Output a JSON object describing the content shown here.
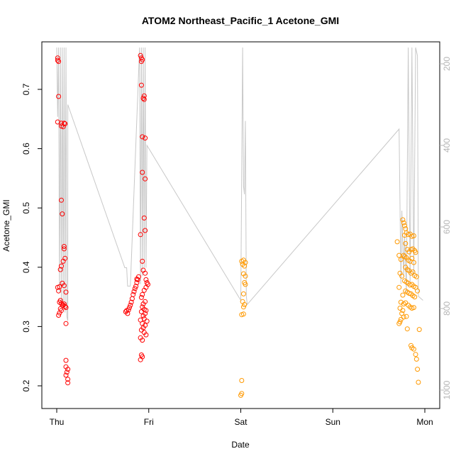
{
  "chart_data": {
    "type": "scatter",
    "title": "ATOM2 Northeast_Pacific_1 Acetone_GMI",
    "xlabel": "Date",
    "ylabel": "Acetone_GMI",
    "x_ticks": [
      "Thu",
      "Fri",
      "Sat",
      "Sun",
      "Mon"
    ],
    "y_ticks": [
      "0.2",
      "0.3",
      "0.4",
      "0.5",
      "0.6",
      "0.7"
    ],
    "y2_ticks": [
      "200",
      "400",
      "600",
      "800",
      "1000"
    ],
    "xlim": [
      0,
      4
    ],
    "ylim": [
      0.18,
      0.78
    ],
    "y2lim": [
      1030,
      160
    ],
    "y2_reversed": true,
    "grid": false,
    "colors": {
      "early_points": "#ff0000",
      "late_points": "#ff9900",
      "pressure_line": "#c8c8c8",
      "axis": "#000000",
      "y2_axis": "#b5b5b5"
    },
    "series": [
      {
        "color": "#ff0000",
        "points": [
          [
            0.01,
            0.753
          ],
          [
            0.01,
            0.749
          ],
          [
            0.02,
            0.747
          ],
          [
            0.01,
            0.645
          ],
          [
            0.02,
            0.688
          ],
          [
            0.05,
            0.643
          ],
          [
            0.05,
            0.638
          ],
          [
            0.07,
            0.637
          ],
          [
            0.08,
            0.643
          ],
          [
            0.09,
            0.642
          ],
          [
            0.05,
            0.513
          ],
          [
            0.06,
            0.49
          ],
          [
            0.08,
            0.435
          ],
          [
            0.08,
            0.431
          ],
          [
            0.09,
            0.415
          ],
          [
            0.07,
            0.41
          ],
          [
            0.05,
            0.402
          ],
          [
            0.04,
            0.396
          ],
          [
            0.06,
            0.373
          ],
          [
            0.08,
            0.369
          ],
          [
            0.01,
            0.366
          ],
          [
            0.03,
            0.367
          ],
          [
            0.02,
            0.36
          ],
          [
            0.1,
            0.358
          ],
          [
            0.04,
            0.344
          ],
          [
            0.03,
            0.341
          ],
          [
            0.05,
            0.339
          ],
          [
            0.06,
            0.336
          ],
          [
            0.07,
            0.336
          ],
          [
            0.08,
            0.338
          ],
          [
            0.09,
            0.334
          ],
          [
            0.1,
            0.332
          ],
          [
            0.04,
            0.33
          ],
          [
            0.05,
            0.327
          ],
          [
            0.03,
            0.323
          ],
          [
            0.02,
            0.319
          ],
          [
            0.1,
            0.305
          ],
          [
            0.1,
            0.243
          ],
          [
            0.1,
            0.232
          ],
          [
            0.12,
            0.228
          ],
          [
            0.11,
            0.223
          ],
          [
            0.1,
            0.218
          ],
          [
            0.12,
            0.211
          ],
          [
            0.12,
            0.205
          ],
          [
            0.75,
            0.325
          ],
          [
            0.76,
            0.327
          ],
          [
            0.77,
            0.322
          ],
          [
            0.78,
            0.328
          ],
          [
            0.79,
            0.332
          ],
          [
            0.8,
            0.336
          ],
          [
            0.81,
            0.341
          ],
          [
            0.82,
            0.347
          ],
          [
            0.83,
            0.354
          ],
          [
            0.84,
            0.359
          ],
          [
            0.85,
            0.364
          ],
          [
            0.86,
            0.368
          ],
          [
            0.87,
            0.374
          ],
          [
            0.88,
            0.379
          ],
          [
            0.89,
            0.384
          ],
          [
            0.87,
            0.38
          ],
          [
            0.91,
            0.757
          ],
          [
            0.92,
            0.753
          ],
          [
            0.93,
            0.75
          ],
          [
            0.92,
            0.747
          ],
          [
            0.92,
            0.707
          ],
          [
            0.94,
            0.685
          ],
          [
            0.95,
            0.683
          ],
          [
            0.95,
            0.689
          ],
          [
            0.93,
            0.62
          ],
          [
            0.96,
            0.618
          ],
          [
            0.93,
            0.56
          ],
          [
            0.96,
            0.549
          ],
          [
            0.95,
            0.483
          ],
          [
            0.96,
            0.462
          ],
          [
            0.91,
            0.455
          ],
          [
            0.93,
            0.41
          ],
          [
            0.94,
            0.395
          ],
          [
            0.96,
            0.39
          ],
          [
            0.97,
            0.379
          ],
          [
            0.98,
            0.374
          ],
          [
            0.99,
            0.371
          ],
          [
            0.97,
            0.366
          ],
          [
            0.95,
            0.361
          ],
          [
            0.93,
            0.354
          ],
          [
            0.92,
            0.349
          ],
          [
            0.96,
            0.342
          ],
          [
            0.94,
            0.338
          ],
          [
            0.93,
            0.333
          ],
          [
            0.95,
            0.329
          ],
          [
            0.97,
            0.327
          ],
          [
            0.92,
            0.325
          ],
          [
            0.96,
            0.322
          ],
          [
            0.94,
            0.318
          ],
          [
            0.95,
            0.313
          ],
          [
            0.91,
            0.311
          ],
          [
            0.98,
            0.309
          ],
          [
            0.93,
            0.305
          ],
          [
            0.96,
            0.302
          ],
          [
            0.94,
            0.298
          ],
          [
            0.92,
            0.294
          ],
          [
            0.95,
            0.29
          ],
          [
            0.97,
            0.286
          ],
          [
            0.91,
            0.281
          ],
          [
            0.93,
            0.277
          ],
          [
            0.92,
            0.252
          ],
          [
            0.93,
            0.249
          ],
          [
            0.91,
            0.244
          ]
        ]
      },
      {
        "color": "#ff9900",
        "points": [
          [
            2.01,
            0.41
          ],
          [
            2.03,
            0.412
          ],
          [
            2.05,
            0.408
          ],
          [
            2.02,
            0.405
          ],
          [
            2.04,
            0.402
          ],
          [
            2.03,
            0.389
          ],
          [
            2.05,
            0.385
          ],
          [
            2.04,
            0.374
          ],
          [
            2.05,
            0.371
          ],
          [
            2.03,
            0.355
          ],
          [
            2.02,
            0.342
          ],
          [
            2.04,
            0.337
          ],
          [
            2.03,
            0.333
          ],
          [
            2.01,
            0.32
          ],
          [
            2.03,
            0.321
          ],
          [
            2.01,
            0.209
          ],
          [
            2.01,
            0.187
          ],
          [
            2.0,
            0.184
          ],
          [
            3.7,
            0.443
          ],
          [
            3.72,
            0.42
          ],
          [
            3.74,
            0.413
          ],
          [
            3.73,
            0.39
          ],
          [
            3.75,
            0.385
          ],
          [
            3.72,
            0.366
          ],
          [
            3.76,
            0.353
          ],
          [
            3.74,
            0.341
          ],
          [
            3.77,
            0.338
          ],
          [
            3.73,
            0.331
          ],
          [
            3.76,
            0.327
          ],
          [
            3.75,
            0.322
          ],
          [
            3.74,
            0.312
          ],
          [
            3.73,
            0.308
          ],
          [
            3.72,
            0.305
          ],
          [
            3.77,
            0.316
          ],
          [
            3.8,
            0.317
          ],
          [
            3.81,
            0.296
          ],
          [
            3.85,
            0.268
          ],
          [
            3.86,
            0.264
          ],
          [
            3.88,
            0.262
          ],
          [
            3.9,
            0.253
          ],
          [
            3.91,
            0.245
          ],
          [
            3.92,
            0.228
          ],
          [
            3.93,
            0.206
          ],
          [
            3.94,
            0.295
          ],
          [
            3.76,
            0.48
          ],
          [
            3.77,
            0.475
          ],
          [
            3.78,
            0.47
          ],
          [
            3.79,
            0.465
          ],
          [
            3.8,
            0.458
          ],
          [
            3.78,
            0.454
          ],
          [
            3.82,
            0.455
          ],
          [
            3.84,
            0.456
          ],
          [
            3.86,
            0.452
          ],
          [
            3.88,
            0.453
          ],
          [
            3.79,
            0.44
          ],
          [
            3.81,
            0.43
          ],
          [
            3.83,
            0.426
          ],
          [
            3.85,
            0.43
          ],
          [
            3.87,
            0.431
          ],
          [
            3.89,
            0.428
          ],
          [
            3.9,
            0.425
          ],
          [
            3.77,
            0.42
          ],
          [
            3.78,
            0.418
          ],
          [
            3.8,
            0.416
          ],
          [
            3.82,
            0.412
          ],
          [
            3.84,
            0.41
          ],
          [
            3.86,
            0.415
          ],
          [
            3.88,
            0.408
          ],
          [
            3.79,
            0.4
          ],
          [
            3.81,
            0.396
          ],
          [
            3.83,
            0.394
          ],
          [
            3.85,
            0.39
          ],
          [
            3.87,
            0.392
          ],
          [
            3.89,
            0.386
          ],
          [
            3.91,
            0.384
          ],
          [
            3.78,
            0.377
          ],
          [
            3.8,
            0.375
          ],
          [
            3.82,
            0.373
          ],
          [
            3.84,
            0.37
          ],
          [
            3.86,
            0.371
          ],
          [
            3.88,
            0.368
          ],
          [
            3.9,
            0.366
          ],
          [
            3.79,
            0.36
          ],
          [
            3.81,
            0.358
          ],
          [
            3.83,
            0.356
          ],
          [
            3.85,
            0.355
          ],
          [
            3.87,
            0.352
          ],
          [
            3.89,
            0.35
          ],
          [
            3.92,
            0.36
          ],
          [
            3.79,
            0.34
          ],
          [
            3.82,
            0.336
          ],
          [
            3.84,
            0.333
          ],
          [
            3.86,
            0.331
          ],
          [
            3.88,
            0.332
          ]
        ]
      }
    ],
    "pressure_trace": [
      [
        0.0,
        160
      ],
      [
        0.01,
        330
      ],
      [
        0.02,
        160
      ],
      [
        0.03,
        760
      ],
      [
        0.04,
        160
      ],
      [
        0.05,
        790
      ],
      [
        0.06,
        160
      ],
      [
        0.07,
        800
      ],
      [
        0.08,
        160
      ],
      [
        0.09,
        810
      ],
      [
        0.1,
        160
      ],
      [
        0.11,
        820
      ],
      [
        0.12,
        830
      ],
      [
        0.12,
        300
      ],
      [
        0.74,
        700
      ],
      [
        0.76,
        700
      ],
      [
        0.77,
        745
      ],
      [
        0.8,
        745
      ],
      [
        0.9,
        160
      ],
      [
        0.91,
        740
      ],
      [
        0.92,
        160
      ],
      [
        0.93,
        720
      ],
      [
        0.94,
        160
      ],
      [
        0.95,
        700
      ],
      [
        0.96,
        160
      ],
      [
        0.97,
        700
      ],
      [
        0.98,
        400
      ],
      [
        2.0,
        780
      ],
      [
        2.02,
        160
      ],
      [
        2.03,
        500
      ],
      [
        2.04,
        520
      ],
      [
        2.05,
        340
      ],
      [
        2.06,
        770
      ],
      [
        2.07,
        790
      ],
      [
        3.72,
        360
      ],
      [
        3.74,
        740
      ],
      [
        3.75,
        560
      ],
      [
        3.77,
        720
      ],
      [
        3.78,
        620
      ],
      [
        3.8,
        760
      ],
      [
        3.82,
        160
      ],
      [
        3.84,
        740
      ],
      [
        3.86,
        160
      ],
      [
        3.88,
        720
      ],
      [
        3.9,
        160
      ],
      [
        3.92,
        180
      ],
      [
        3.93,
        770
      ],
      [
        3.98,
        780
      ]
    ]
  }
}
